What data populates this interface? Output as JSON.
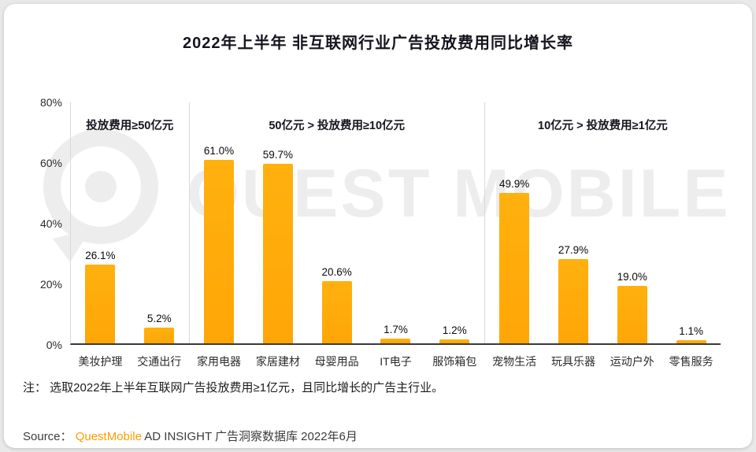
{
  "page": {
    "note": "注： 选取2022年上半年互联网广告投放费用≥1亿元，且同比增长的广告主行业。"
  },
  "source": {
    "label": "Source：",
    "brand": "QuestMobile",
    "rest": " AD INSIGHT 广告洞察数据库 2022年6月"
  },
  "watermark": {
    "text": "QUEST MOBILE",
    "icon": "questmobile-speech-bubble-logo"
  },
  "colors": {
    "bar": "#FFB10E",
    "brand_orange": "#FF9C00",
    "watermark_gray": "#EDEDED",
    "axis_dark": "#3A3A3A",
    "separator_gray": "#D9D9D9"
  },
  "chart_data": {
    "type": "bar",
    "title": "2022年上半年 非互联网行业广告投放费用同比增长率",
    "xlabel": "",
    "ylabel": "",
    "ylim": [
      0,
      80
    ],
    "grid": false,
    "legend": false,
    "yticks": [
      {
        "value": 0,
        "label": "0%"
      },
      {
        "value": 20,
        "label": "20%"
      },
      {
        "value": 40,
        "label": "40%"
      },
      {
        "value": 60,
        "label": "60%"
      },
      {
        "value": 80,
        "label": "80%"
      }
    ],
    "groups": [
      {
        "label": "投放费用≥50亿元",
        "categories": [
          "美妆护理",
          "交通出行"
        ],
        "values": [
          26.1,
          5.2
        ],
        "value_labels": [
          "26.1%",
          "5.2%"
        ]
      },
      {
        "label": "50亿元 > 投放费用≥10亿元",
        "categories": [
          "家用电器",
          "家居建材",
          "母婴用品",
          "IT电子",
          "服饰箱包"
        ],
        "values": [
          61.0,
          59.7,
          20.6,
          1.7,
          1.2
        ],
        "value_labels": [
          "61.0%",
          "59.7%",
          "20.6%",
          "1.7%",
          "1.2%"
        ]
      },
      {
        "label": "10亿元 > 投放费用≥1亿元",
        "categories": [
          "宠物生活",
          "玩具乐器",
          "运动户外",
          "零售服务"
        ],
        "values": [
          49.9,
          27.9,
          19.0,
          1.1
        ],
        "value_labels": [
          "49.9%",
          "27.9%",
          "19.0%",
          "1.1%"
        ]
      }
    ]
  }
}
